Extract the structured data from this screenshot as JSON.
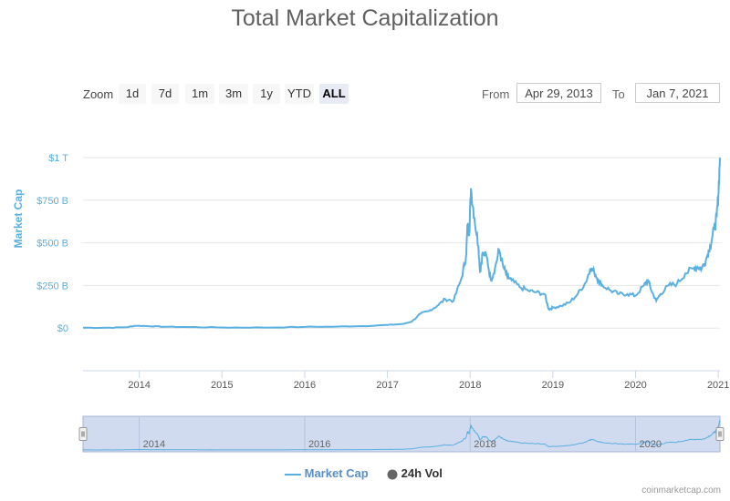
{
  "chart_data": {
    "type": "line",
    "title": "Total Market Capitalization",
    "ylabel": "Market Cap",
    "xlabel": "",
    "ylim": [
      -250,
      1000
    ],
    "y_ticks": [
      {
        "value": 0,
        "label": "$0"
      },
      {
        "value": 250,
        "label": "$250 B"
      },
      {
        "value": 500,
        "label": "$500 B"
      },
      {
        "value": 750,
        "label": "$750 B"
      },
      {
        "value": 1000,
        "label": "$1 T"
      }
    ],
    "x_range": [
      2013.32,
      2021.02
    ],
    "x_ticks": [
      "2014",
      "2015",
      "2016",
      "2017",
      "2018",
      "2019",
      "2020",
      "2021"
    ],
    "navigator_ticks": [
      "2014",
      "2016",
      "2018",
      "2020"
    ],
    "series": [
      {
        "name": "Market Cap",
        "color": "#5ab0e0",
        "unit": "billion USD",
        "x": [
          2013.32,
          2013.6,
          2013.85,
          2013.95,
          2014.1,
          2014.3,
          2014.6,
          2015.0,
          2015.5,
          2016.0,
          2016.4,
          2016.7,
          2017.0,
          2017.2,
          2017.3,
          2017.4,
          2017.5,
          2017.6,
          2017.7,
          2017.8,
          2017.9,
          2017.95,
          2017.97,
          2017.99,
          2018.01,
          2018.05,
          2018.1,
          2018.12,
          2018.15,
          2018.2,
          2018.25,
          2018.3,
          2018.35,
          2018.4,
          2018.45,
          2018.5,
          2018.6,
          2018.7,
          2018.8,
          2018.9,
          2018.95,
          2019.0,
          2019.1,
          2019.2,
          2019.3,
          2019.4,
          2019.45,
          2019.5,
          2019.55,
          2019.6,
          2019.7,
          2019.8,
          2019.9,
          2020.0,
          2020.1,
          2020.15,
          2020.2,
          2020.25,
          2020.3,
          2020.4,
          2020.5,
          2020.6,
          2020.7,
          2020.75,
          2020.8,
          2020.85,
          2020.9,
          2020.95,
          2020.98,
          2021.0,
          2021.02
        ],
        "values": [
          2,
          2,
          5,
          14,
          12,
          8,
          6,
          4,
          3,
          7,
          9,
          12,
          18,
          25,
          40,
          85,
          100,
          130,
          170,
          160,
          300,
          420,
          610,
          560,
          820,
          650,
          480,
          330,
          440,
          420,
          280,
          350,
          460,
          360,
          300,
          280,
          240,
          220,
          210,
          200,
          110,
          120,
          130,
          150,
          200,
          270,
          350,
          330,
          280,
          250,
          220,
          200,
          200,
          190,
          250,
          280,
          210,
          160,
          200,
          250,
          260,
          320,
          350,
          360,
          350,
          400,
          480,
          580,
          650,
          780,
          1000
        ]
      },
      {
        "name": "24h Vol",
        "color": "#666666"
      }
    ]
  },
  "controls": {
    "zoom_label": "Zoom",
    "zoom_buttons": [
      "1d",
      "7d",
      "1m",
      "3m",
      "1y",
      "YTD",
      "ALL"
    ],
    "active_zoom": "ALL",
    "from_label": "From",
    "from_value": "Apr 29, 2013",
    "to_label": "To",
    "to_value": "Jan 7, 2021"
  },
  "credit": "coinmarketcap.com"
}
